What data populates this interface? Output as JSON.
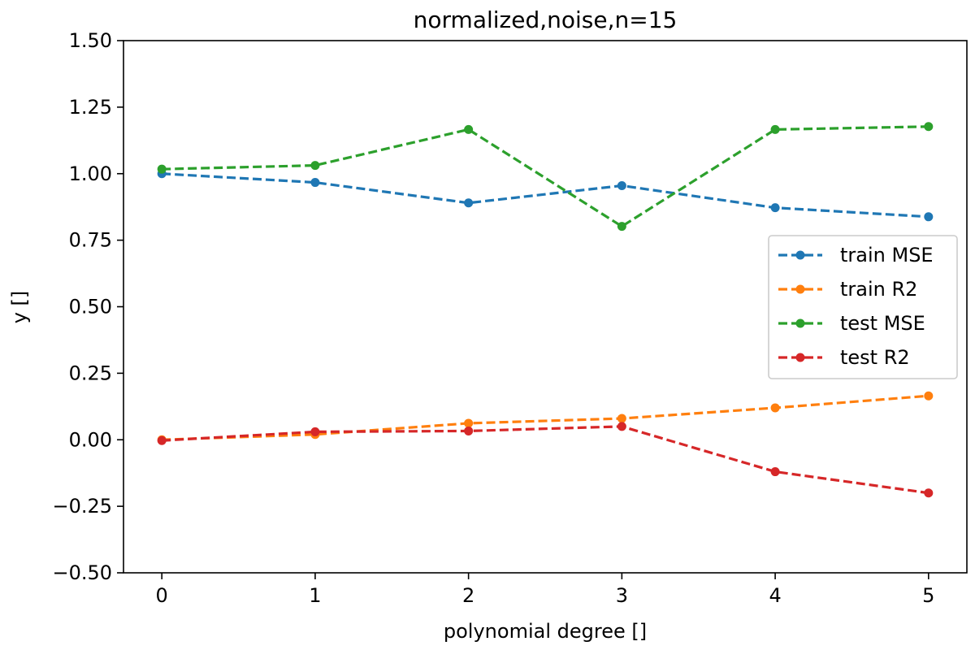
{
  "chart_data": {
    "type": "line",
    "title": "normalized,noise,n=15",
    "xlabel": "polynomial degree []",
    "ylabel": "y []",
    "x": [
      0,
      1,
      2,
      3,
      4,
      5
    ],
    "xlim": [
      -0.25,
      5.25
    ],
    "ylim": [
      -0.5,
      1.5
    ],
    "xticks": [
      "0",
      "1",
      "2",
      "3",
      "4",
      "5"
    ],
    "yticks": [
      "−0.50",
      "−0.25",
      "0.00",
      "0.25",
      "0.50",
      "0.75",
      "1.00",
      "1.25",
      "1.50"
    ],
    "ytick_values": [
      -0.5,
      -0.25,
      0.0,
      0.25,
      0.5,
      0.75,
      1.0,
      1.25,
      1.5
    ],
    "grid": false,
    "legend_position": "center-right",
    "series": [
      {
        "name": "train MSE",
        "color": "#1f77b4",
        "values": [
          1.0,
          0.967,
          0.89,
          0.955,
          0.872,
          0.838
        ]
      },
      {
        "name": "train R2",
        "color": "#ff7f0e",
        "values": [
          0.0,
          0.02,
          0.062,
          0.08,
          0.12,
          0.165
        ]
      },
      {
        "name": "test MSE",
        "color": "#2ca02c",
        "values": [
          1.017,
          1.031,
          1.166,
          0.802,
          1.166,
          1.177
        ]
      },
      {
        "name": "test R2",
        "color": "#d62728",
        "values": [
          -0.003,
          0.03,
          0.033,
          0.05,
          -0.12,
          -0.2
        ]
      }
    ]
  }
}
